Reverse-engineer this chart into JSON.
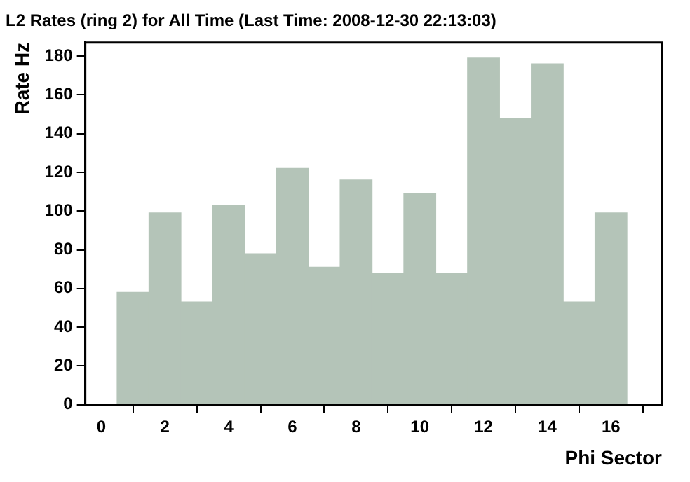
{
  "chart_data": {
    "type": "histogram",
    "title": "L2 Rates (ring 2) for All Time (Last Time: 2008-12-30 22:13:03)",
    "xlabel": "Phi Sector",
    "ylabel": "Rate Hz",
    "bins": [
      0.5,
      1.5,
      2.5,
      3.5,
      4.5,
      5.5,
      6.5,
      7.5,
      8.5,
      9.5,
      10.5,
      11.5,
      12.5,
      13.5,
      14.5,
      15.5,
      16.5
    ],
    "values": [
      58,
      99,
      53,
      103,
      78,
      122,
      71,
      116,
      68,
      109,
      68,
      179,
      148,
      176,
      53,
      99
    ],
    "color": "#b4c4b8",
    "xlim": [
      -0.5,
      17.6
    ],
    "xticks": [
      0,
      2,
      4,
      6,
      8,
      10,
      12,
      14,
      16
    ],
    "ylim": [
      0,
      187
    ],
    "yticks": [
      0,
      20,
      40,
      60,
      80,
      100,
      120,
      140,
      160,
      180
    ],
    "grid": false,
    "legend": false
  }
}
